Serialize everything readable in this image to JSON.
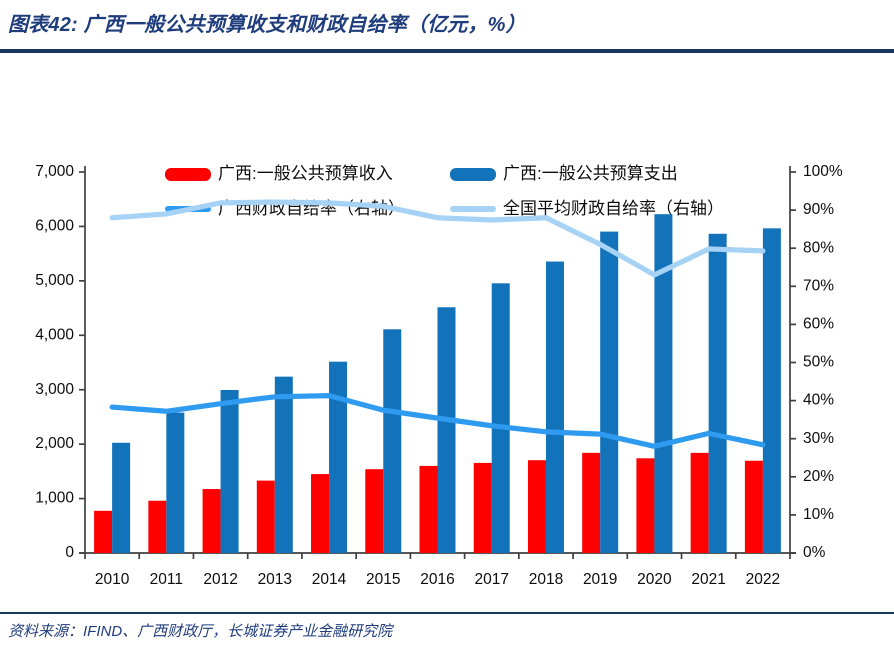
{
  "header": {
    "title": "图表42: 广西一般公共预算收支和财政自给率（亿元，%）"
  },
  "legend": {
    "items": [
      {
        "label": "广西:一般公共预算收入",
        "marker": "bar",
        "color": "#FE0000"
      },
      {
        "label": "广西:一般公共预算支出",
        "marker": "bar",
        "color": "#1272BA"
      },
      {
        "label": "广西财政自给率（右轴）",
        "marker": "line",
        "color": "#2E9BF0"
      },
      {
        "label": "全国平均财政自给率（右轴）",
        "marker": "line",
        "color": "#A5D2F5"
      }
    ]
  },
  "chart_data": {
    "type": "combo",
    "title": "广西一般公共预算收支和财政自给率（亿元，%）",
    "categories": [
      "2010",
      "2011",
      "2012",
      "2013",
      "2014",
      "2015",
      "2016",
      "2017",
      "2018",
      "2019",
      "2020",
      "2021",
      "2022"
    ],
    "series": [
      {
        "name": "广西:一般公共预算收入",
        "type": "bar",
        "axis": "left",
        "color": "#FE0000",
        "values": [
          775,
          960,
          1175,
          1330,
          1450,
          1540,
          1600,
          1655,
          1705,
          1840,
          1740,
          1840,
          1695
        ]
      },
      {
        "name": "广西:一般公共预算支出",
        "type": "bar",
        "axis": "left",
        "color": "#1272BA",
        "values": [
          2025,
          2580,
          2995,
          3240,
          3515,
          4110,
          4515,
          4955,
          5355,
          5905,
          6225,
          5865,
          5965
        ]
      },
      {
        "name": "广西财政自给率（右轴）",
        "type": "line",
        "axis": "right",
        "color": "#2E9BF0",
        "values": [
          38.3,
          37.2,
          39.2,
          41.0,
          41.3,
          37.5,
          35.4,
          33.4,
          31.8,
          31.2,
          28.0,
          31.4,
          28.4
        ]
      },
      {
        "name": "全国平均财政自给率（右轴）",
        "type": "line",
        "axis": "right",
        "color": "#A5D2F5",
        "values": [
          88.0,
          89.0,
          91.9,
          92.1,
          91.9,
          91.0,
          88.0,
          87.4,
          88.0,
          81.0,
          73.0,
          79.8,
          79.3
        ]
      }
    ],
    "left_axis": {
      "min": 0,
      "max": 7000,
      "step": 1000,
      "tick_labels": [
        "0",
        "1,000",
        "2,000",
        "3,000",
        "4,000",
        "5,000",
        "6,000",
        "7,000"
      ]
    },
    "right_axis": {
      "min": 0,
      "max": 100,
      "step": 10,
      "suffix": "%",
      "tick_labels": [
        "0%",
        "10%",
        "20%",
        "30%",
        "40%",
        "50%",
        "60%",
        "70%",
        "80%",
        "90%",
        "100%"
      ]
    },
    "legend_position": "top",
    "grid": false
  },
  "footer": {
    "source": "资料来源：IFIND、广西财政厅，长城证券产业金融研究院"
  }
}
